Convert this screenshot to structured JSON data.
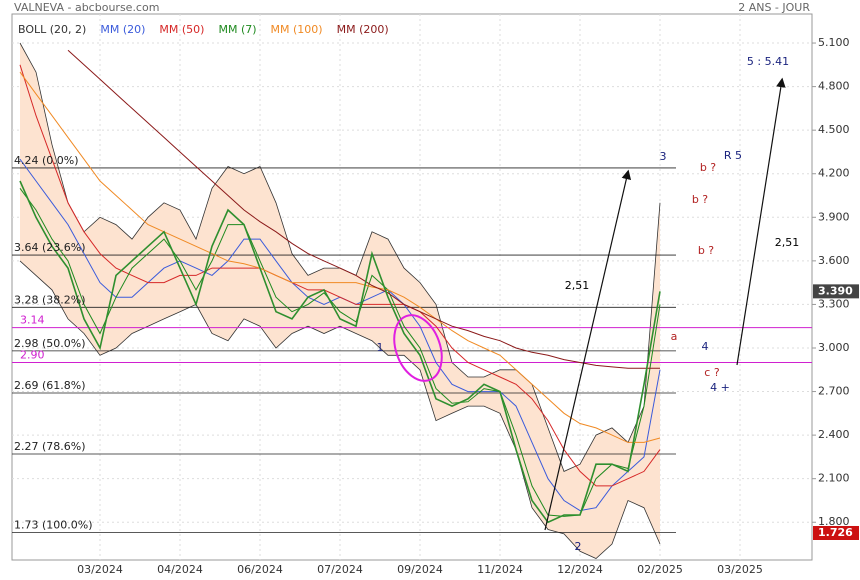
{
  "chart_data": {
    "type": "line",
    "title": "VALNEVA - abcbourse.com",
    "subtitle": "2 ANS - JOUR",
    "categories": [
      null,
      null,
      null,
      null,
      null,
      "03/2024",
      null,
      null,
      null,
      null,
      "04/2024",
      null,
      null,
      null,
      null,
      "06/2024",
      null,
      null,
      null,
      null,
      "07/2024",
      null,
      null,
      null,
      null,
      "09/2024",
      null,
      null,
      null,
      null,
      "11/2024",
      null,
      null,
      null,
      null,
      "12/2024",
      null,
      null,
      null,
      null,
      "02/2025",
      null,
      null,
      null,
      null,
      "03/2025",
      null,
      null,
      null,
      null
    ],
    "ylim": [
      1.54,
      5.3
    ],
    "yticks": [
      {
        "value": 1.8,
        "label": "1.800"
      },
      {
        "value": 2.1,
        "label": "2.100"
      },
      {
        "value": 2.4,
        "label": "2.400"
      },
      {
        "value": 2.7,
        "label": "2.700"
      },
      {
        "value": 3.0,
        "label": "3.000"
      },
      {
        "value": 3.3,
        "label": "3.300"
      },
      {
        "value": 3.6,
        "label": "3.600"
      },
      {
        "value": 3.9,
        "label": "3.900"
      },
      {
        "value": 4.2,
        "label": "4.200"
      },
      {
        "value": 4.5,
        "label": "4.500"
      },
      {
        "value": 4.8,
        "label": "4.800"
      },
      {
        "value": 5.1,
        "label": "5.100"
      }
    ],
    "grid": true,
    "price": {
      "color": "#2f8f2f",
      "values": [
        4.15,
        3.9,
        3.7,
        3.55,
        3.2,
        3.0,
        3.5,
        3.6,
        3.7,
        3.8,
        3.55,
        3.3,
        3.7,
        3.95,
        3.85,
        3.55,
        3.25,
        3.2,
        3.35,
        3.4,
        3.2,
        3.15,
        3.65,
        3.35,
        3.1,
        2.95,
        2.65,
        2.6,
        2.65,
        2.75,
        2.7,
        2.3,
        1.95,
        1.8,
        1.85,
        1.85,
        2.2,
        2.2,
        2.15,
        2.75,
        3.39,
        null,
        null,
        null,
        null,
        null,
        null,
        null,
        null,
        null
      ]
    },
    "bands": {
      "name": "BOLL (20, 2)",
      "color": "#333333",
      "fill": "#fde3d0",
      "upper": [
        5.1,
        4.9,
        4.4,
        4.0,
        3.8,
        3.9,
        3.85,
        3.75,
        3.9,
        4.0,
        3.95,
        3.75,
        4.1,
        4.25,
        4.2,
        4.25,
        4.0,
        3.65,
        3.5,
        3.55,
        3.55,
        3.5,
        3.8,
        3.75,
        3.55,
        3.45,
        3.3,
        2.9,
        2.8,
        2.8,
        2.85,
        2.85,
        2.75,
        2.45,
        2.15,
        2.2,
        2.4,
        2.45,
        2.35,
        2.6,
        4.0,
        null,
        null,
        null,
        null,
        null,
        null,
        null,
        null,
        null
      ],
      "lower": [
        3.6,
        3.5,
        3.4,
        3.2,
        3.1,
        2.95,
        3.0,
        3.1,
        3.15,
        3.2,
        3.25,
        3.3,
        3.1,
        3.05,
        3.2,
        3.15,
        3.0,
        3.1,
        3.15,
        3.1,
        3.15,
        3.1,
        3.05,
        2.95,
        2.95,
        2.85,
        2.5,
        2.55,
        2.6,
        2.6,
        2.55,
        2.3,
        1.9,
        1.75,
        1.72,
        1.6,
        1.55,
        1.65,
        1.95,
        1.9,
        1.65,
        null,
        null,
        null,
        null,
        null,
        null,
        null,
        null,
        null
      ]
    },
    "series": [
      {
        "name": "MM (20)",
        "color": "#3b5bdb",
        "values": [
          4.3,
          4.15,
          4.0,
          3.85,
          3.65,
          3.45,
          3.35,
          3.35,
          3.45,
          3.55,
          3.6,
          3.55,
          3.5,
          3.6,
          3.75,
          3.75,
          3.6,
          3.45,
          3.35,
          3.3,
          3.35,
          3.3,
          3.35,
          3.4,
          3.3,
          3.15,
          2.9,
          2.75,
          2.7,
          2.7,
          2.7,
          2.6,
          2.35,
          2.1,
          1.95,
          1.88,
          1.9,
          2.05,
          2.15,
          2.25,
          2.85,
          null,
          null,
          null,
          null,
          null,
          null,
          null,
          null,
          null
        ]
      },
      {
        "name": "MM (50)",
        "color": "#d62828",
        "values": [
          4.95,
          4.6,
          4.3,
          4.0,
          3.8,
          3.65,
          3.55,
          3.5,
          3.45,
          3.45,
          3.5,
          3.5,
          3.55,
          3.55,
          3.55,
          3.55,
          3.5,
          3.45,
          3.4,
          3.4,
          3.35,
          3.3,
          3.3,
          3.3,
          3.3,
          3.25,
          3.15,
          3.0,
          2.9,
          2.85,
          2.8,
          2.75,
          2.65,
          2.5,
          2.3,
          2.15,
          2.05,
          2.05,
          2.1,
          2.15,
          2.3,
          null,
          null,
          null,
          null,
          null,
          null,
          null,
          null,
          null
        ]
      },
      {
        "name": "MM (7)",
        "color": "#1f8a1f",
        "values": [
          4.1,
          3.95,
          3.75,
          3.6,
          3.3,
          3.1,
          3.35,
          3.55,
          3.65,
          3.75,
          3.6,
          3.4,
          3.6,
          3.85,
          3.85,
          3.6,
          3.35,
          3.25,
          3.3,
          3.38,
          3.25,
          3.18,
          3.5,
          3.4,
          3.15,
          3.0,
          2.72,
          2.62,
          2.63,
          2.72,
          2.7,
          2.4,
          2.05,
          1.85,
          1.84,
          1.85,
          2.1,
          2.2,
          2.17,
          2.6,
          3.3,
          null,
          null,
          null,
          null,
          null,
          null,
          null,
          null,
          null
        ]
      },
      {
        "name": "MM (100)",
        "color": "#f08a24",
        "values": [
          4.9,
          4.75,
          4.6,
          4.45,
          4.3,
          4.15,
          4.05,
          3.95,
          3.85,
          3.8,
          3.75,
          3.7,
          3.65,
          3.6,
          3.58,
          3.55,
          3.5,
          3.45,
          3.45,
          3.45,
          3.45,
          3.45,
          3.42,
          3.4,
          3.35,
          3.28,
          3.2,
          3.12,
          3.05,
          3.0,
          2.95,
          2.85,
          2.75,
          2.65,
          2.55,
          2.48,
          2.45,
          2.4,
          2.35,
          2.35,
          2.38,
          null,
          null,
          null,
          null,
          null,
          null,
          null,
          null,
          null
        ]
      },
      {
        "name": "MM (200)",
        "color": "#8b1a1a",
        "values": [
          null,
          null,
          null,
          5.05,
          4.95,
          4.85,
          4.75,
          4.65,
          4.55,
          4.45,
          4.35,
          4.25,
          4.15,
          4.05,
          3.95,
          3.87,
          3.8,
          3.72,
          3.65,
          3.6,
          3.55,
          3.5,
          3.43,
          3.38,
          3.3,
          3.25,
          3.2,
          3.15,
          3.12,
          3.08,
          3.05,
          3.0,
          2.97,
          2.95,
          2.92,
          2.9,
          2.88,
          2.87,
          2.86,
          2.86,
          2.86,
          null,
          null,
          null,
          null,
          null,
          null,
          null,
          null,
          null
        ]
      }
    ],
    "levels": [
      {
        "value": 4.24,
        "label": "4.24 (0.0%)"
      },
      {
        "value": 3.64,
        "label": "3.64 (23.6%)"
      },
      {
        "value": 3.28,
        "label": "3.28 (38.2%)"
      },
      {
        "value": 2.98,
        "label": "2.98 (50.0%)"
      },
      {
        "value": 2.69,
        "label": "2.69 (61.8%)"
      },
      {
        "value": 2.27,
        "label": "2.27 (78.6%)"
      },
      {
        "value": 1.73,
        "label": "1.73 (100.0%)"
      }
    ],
    "magenta_levels": [
      3.14,
      {
        "value": 2.9,
        "label": "2.90"
      }
    ],
    "markers": [
      {
        "value": 3.39,
        "label": "3.390",
        "color": "#444444"
      },
      {
        "value": 1.726,
        "color": "#cc1111"
      }
    ],
    "annotations": [
      {
        "text": "5 : 5.41",
        "color": "#1a237e"
      },
      {
        "text": "R 5",
        "color": "#1a237e"
      },
      {
        "text": "3",
        "color": "#1a237e"
      },
      {
        "text": "b ?",
        "color": "#b22222"
      },
      {
        "text": "b ?",
        "color": "#b22222"
      },
      {
        "text": "b ?",
        "color": "#b22222"
      },
      {
        "text": "2,51",
        "color": "#000000"
      },
      {
        "text": "2,51",
        "color": "#000000"
      },
      {
        "text": "1",
        "color": "#1a237e"
      },
      {
        "text": "2",
        "color": "#1a237e"
      },
      {
        "text": "4",
        "color": "#1a237e"
      },
      {
        "text": "4 +",
        "color": "#1a237e"
      },
      {
        "text": "a",
        "color": "#b22222"
      },
      {
        "text": "c ?",
        "color": "#b22222"
      }
    ]
  }
}
